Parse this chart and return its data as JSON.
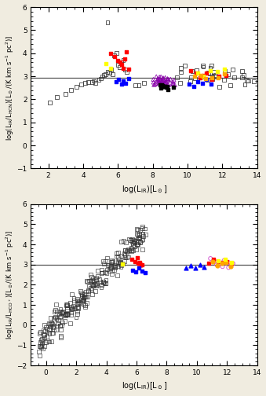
{
  "upper_panel": {
    "ylabel": "log(L$_{\\rm IR}$/L$_{\\rm HCN}$)[L$_\\odot$/(K km s$^{-1}$ pc$^2$)]",
    "xlabel": "log(L$_{\\rm IR}$)[L$_\\odot$]",
    "xlim": [
      1,
      14
    ],
    "ylim": [
      -1,
      6
    ],
    "xticks": [
      2,
      4,
      6,
      8,
      10,
      12,
      14
    ],
    "yticks": [
      -1,
      0,
      1,
      2,
      3,
      4,
      5,
      6
    ],
    "hline_y": 2.95,
    "bg": "#ffffff"
  },
  "lower_panel": {
    "ylabel": "log(L$_{\\rm IR}$/L$_{\\rm HCO^+}$)[L$_\\odot$/(K km s$^{-1}$ pc$^2$)]",
    "xlabel": "log(L$_{\\rm IR}$)[L$_\\odot$]",
    "xlim": [
      -1,
      14
    ],
    "ylim": [
      -2,
      6
    ],
    "xticks": [
      0,
      2,
      4,
      6,
      8,
      10,
      12,
      14
    ],
    "yticks": [
      -2,
      -1,
      0,
      1,
      2,
      3,
      4,
      5,
      6
    ],
    "hline_y": 3.0,
    "bg": "#ffffff"
  },
  "figure_bg": "#f0ece0"
}
